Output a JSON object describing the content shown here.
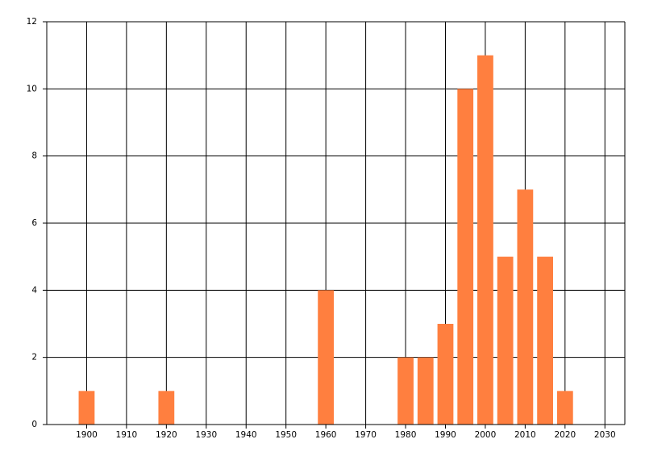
{
  "chart_data": {
    "type": "bar",
    "x": [
      1900,
      1920,
      1960,
      1980,
      1985,
      1990,
      1995,
      2000,
      2005,
      2010,
      2015,
      2020
    ],
    "values": [
      1,
      1,
      4,
      2,
      2,
      3,
      10,
      11,
      5,
      7,
      5,
      1
    ],
    "color": "#ff7f3f",
    "xlim": [
      1890,
      2035
    ],
    "xticks": [
      1900,
      1910,
      1920,
      1930,
      1940,
      1950,
      1960,
      1970,
      1980,
      1990,
      2000,
      2010,
      2020,
      2030
    ],
    "ylim": [
      0,
      12
    ],
    "yticks": [
      0,
      2,
      4,
      6,
      8,
      10,
      12
    ],
    "grid": true
  }
}
